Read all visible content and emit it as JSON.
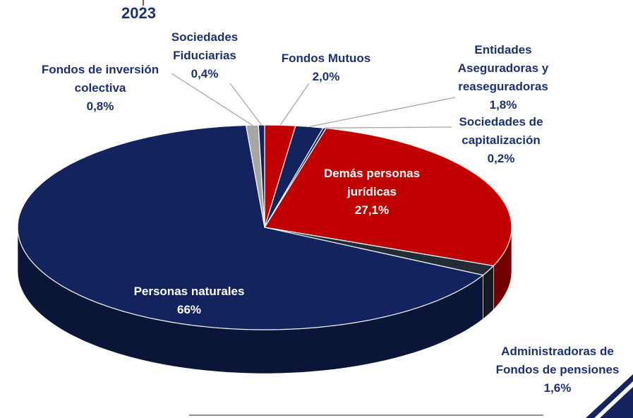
{
  "chart_data": {
    "type": "pie3d",
    "title": "2023",
    "categories": [
      "Fondos Mutuos",
      "Entidades Aseguradoras y reaseguradoras",
      "Sociedades de capitalización",
      "Demás personas jurídicas",
      "Administradoras de Fondos de pensiones",
      "Personas naturales",
      "Fondos de inversión colectiva",
      "Sociedades Fiduciarias"
    ],
    "values": [
      2.0,
      1.8,
      0.2,
      27.1,
      1.6,
      66,
      0.8,
      0.4
    ],
    "value_labels": [
      "2,0%",
      "1,8%",
      "0,2%",
      "27,1%",
      "1,6%",
      "66%",
      "0,8%",
      "0,4%"
    ],
    "colors": [
      "#c00000",
      "#13235e",
      "#13235e",
      "#c00000",
      "#232b36",
      "#13235e",
      "#a6a6a6",
      "#13235e"
    ]
  }
}
